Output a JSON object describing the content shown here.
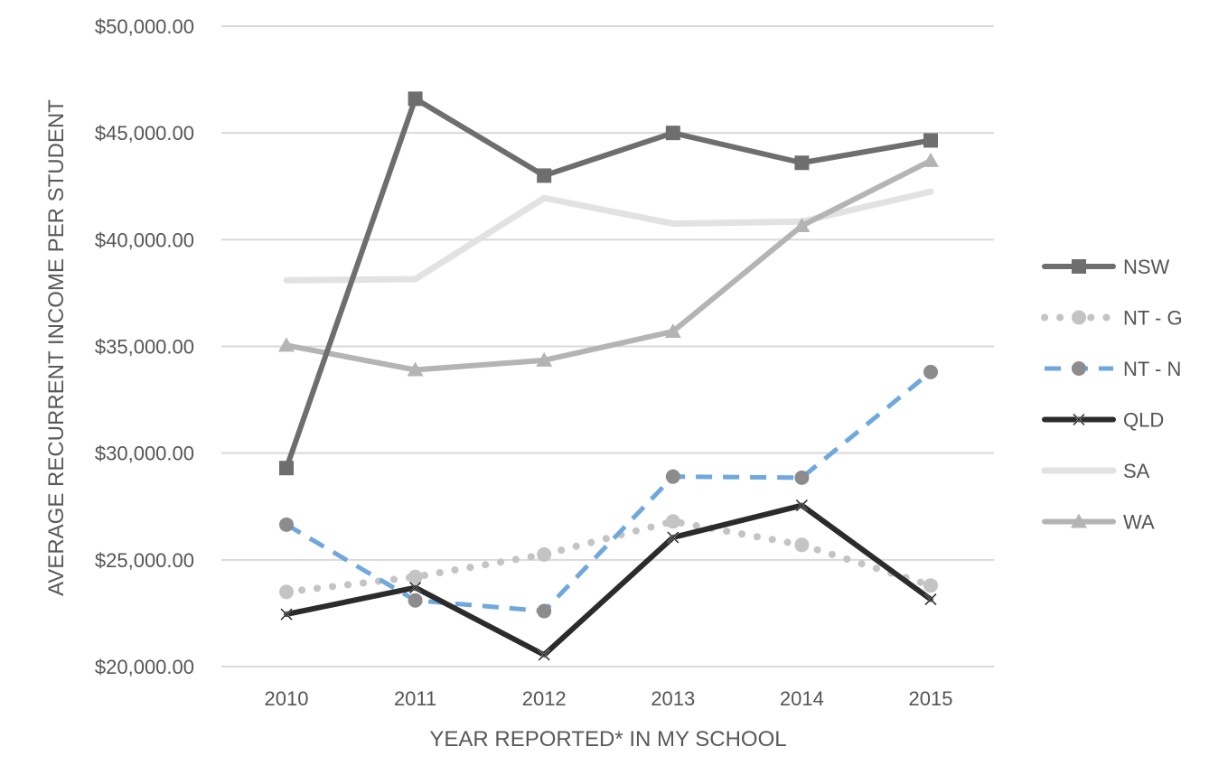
{
  "chart_data": {
    "type": "line",
    "title": "",
    "xlabel": "YEAR REPORTED* IN MY SCHOOL",
    "ylabel": "AVERAGE RECURRENT INCOME PER STUDENT",
    "categories": [
      "2010",
      "2011",
      "2012",
      "2013",
      "2014",
      "2015"
    ],
    "ylim": [
      20000,
      50000
    ],
    "yticks": [
      20000,
      25000,
      30000,
      35000,
      40000,
      45000,
      50000
    ],
    "ytick_labels": [
      "$20,000.00",
      "$25,000.00",
      "$30,000.00",
      "$35,000.00",
      "$40,000.00",
      "$45,000.00",
      "$50,000.00"
    ],
    "grid": "horizontal",
    "legend_position": "right",
    "series": [
      {
        "name": "NSW",
        "values": [
          29300,
          46600,
          43000,
          45000,
          43600,
          44650
        ],
        "color": "#6e6e6e",
        "line": "solid",
        "marker": "square"
      },
      {
        "name": "NT - G",
        "values": [
          23500,
          24200,
          25250,
          26800,
          25700,
          23800
        ],
        "color": "#c4c4c4",
        "line": "dotted",
        "marker": "circle"
      },
      {
        "name": "NT - N",
        "values": [
          26650,
          23100,
          22600,
          28900,
          28850,
          33800
        ],
        "color": "#6fa8dc",
        "line": "dashed",
        "marker": "circle",
        "marker_color": "#8c8c8c"
      },
      {
        "name": "QLD",
        "values": [
          22450,
          23700,
          20550,
          26050,
          27550,
          23150
        ],
        "color": "#2b2b2b",
        "line": "solid",
        "marker": "x"
      },
      {
        "name": "SA",
        "values": [
          38100,
          38150,
          41950,
          40750,
          40850,
          42250
        ],
        "color": "#e2e2e2",
        "line": "solid",
        "marker": "none"
      },
      {
        "name": "WA",
        "values": [
          35050,
          33900,
          34350,
          35700,
          40650,
          43700
        ],
        "color": "#b4b4b4",
        "line": "solid",
        "marker": "triangle"
      }
    ]
  }
}
